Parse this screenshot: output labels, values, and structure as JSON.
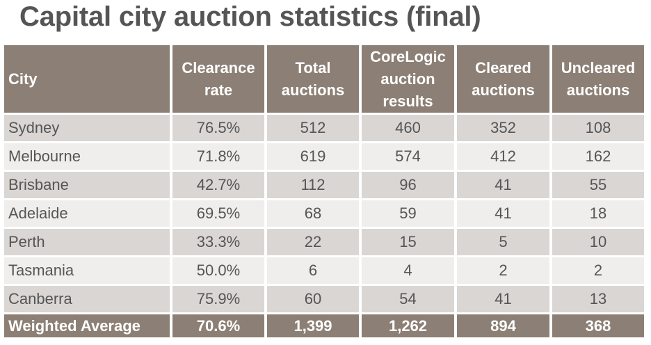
{
  "title": "Capital city auction statistics (final)",
  "columns": [
    "City",
    "Clearance rate",
    "Total auctions",
    "CoreLogic auction results",
    "Cleared auctions",
    "Uncleared auctions"
  ],
  "column_lines": [
    [
      "City"
    ],
    [
      "Clearance",
      "rate"
    ],
    [
      "Total",
      "auctions"
    ],
    [
      "CoreLogic",
      "auction",
      "results"
    ],
    [
      "Cleared",
      "auctions"
    ],
    [
      "Uncleared",
      "auctions"
    ]
  ],
  "rows": [
    [
      "Sydney",
      "76.5%",
      "512",
      "460",
      "352",
      "108"
    ],
    [
      "Melbourne",
      "71.8%",
      "619",
      "574",
      "412",
      "162"
    ],
    [
      "Brisbane",
      "42.7%",
      "112",
      "96",
      "41",
      "55"
    ],
    [
      "Adelaide",
      "69.5%",
      "68",
      "59",
      "41",
      "18"
    ],
    [
      "Perth",
      "33.3%",
      "22",
      "15",
      "5",
      "10"
    ],
    [
      "Tasmania",
      "50.0%",
      "6",
      "4",
      "2",
      "2"
    ],
    [
      "Canberra",
      "75.9%",
      "60",
      "54",
      "41",
      "13"
    ]
  ],
  "total_row": [
    "Weighted Average",
    "70.6%",
    "1,399",
    "1,262",
    "894",
    "368"
  ],
  "colors": {
    "header_bg": "#8c7f75",
    "row_dark": "#d9d6d4",
    "row_light": "#efeeed",
    "title": "#555555"
  }
}
